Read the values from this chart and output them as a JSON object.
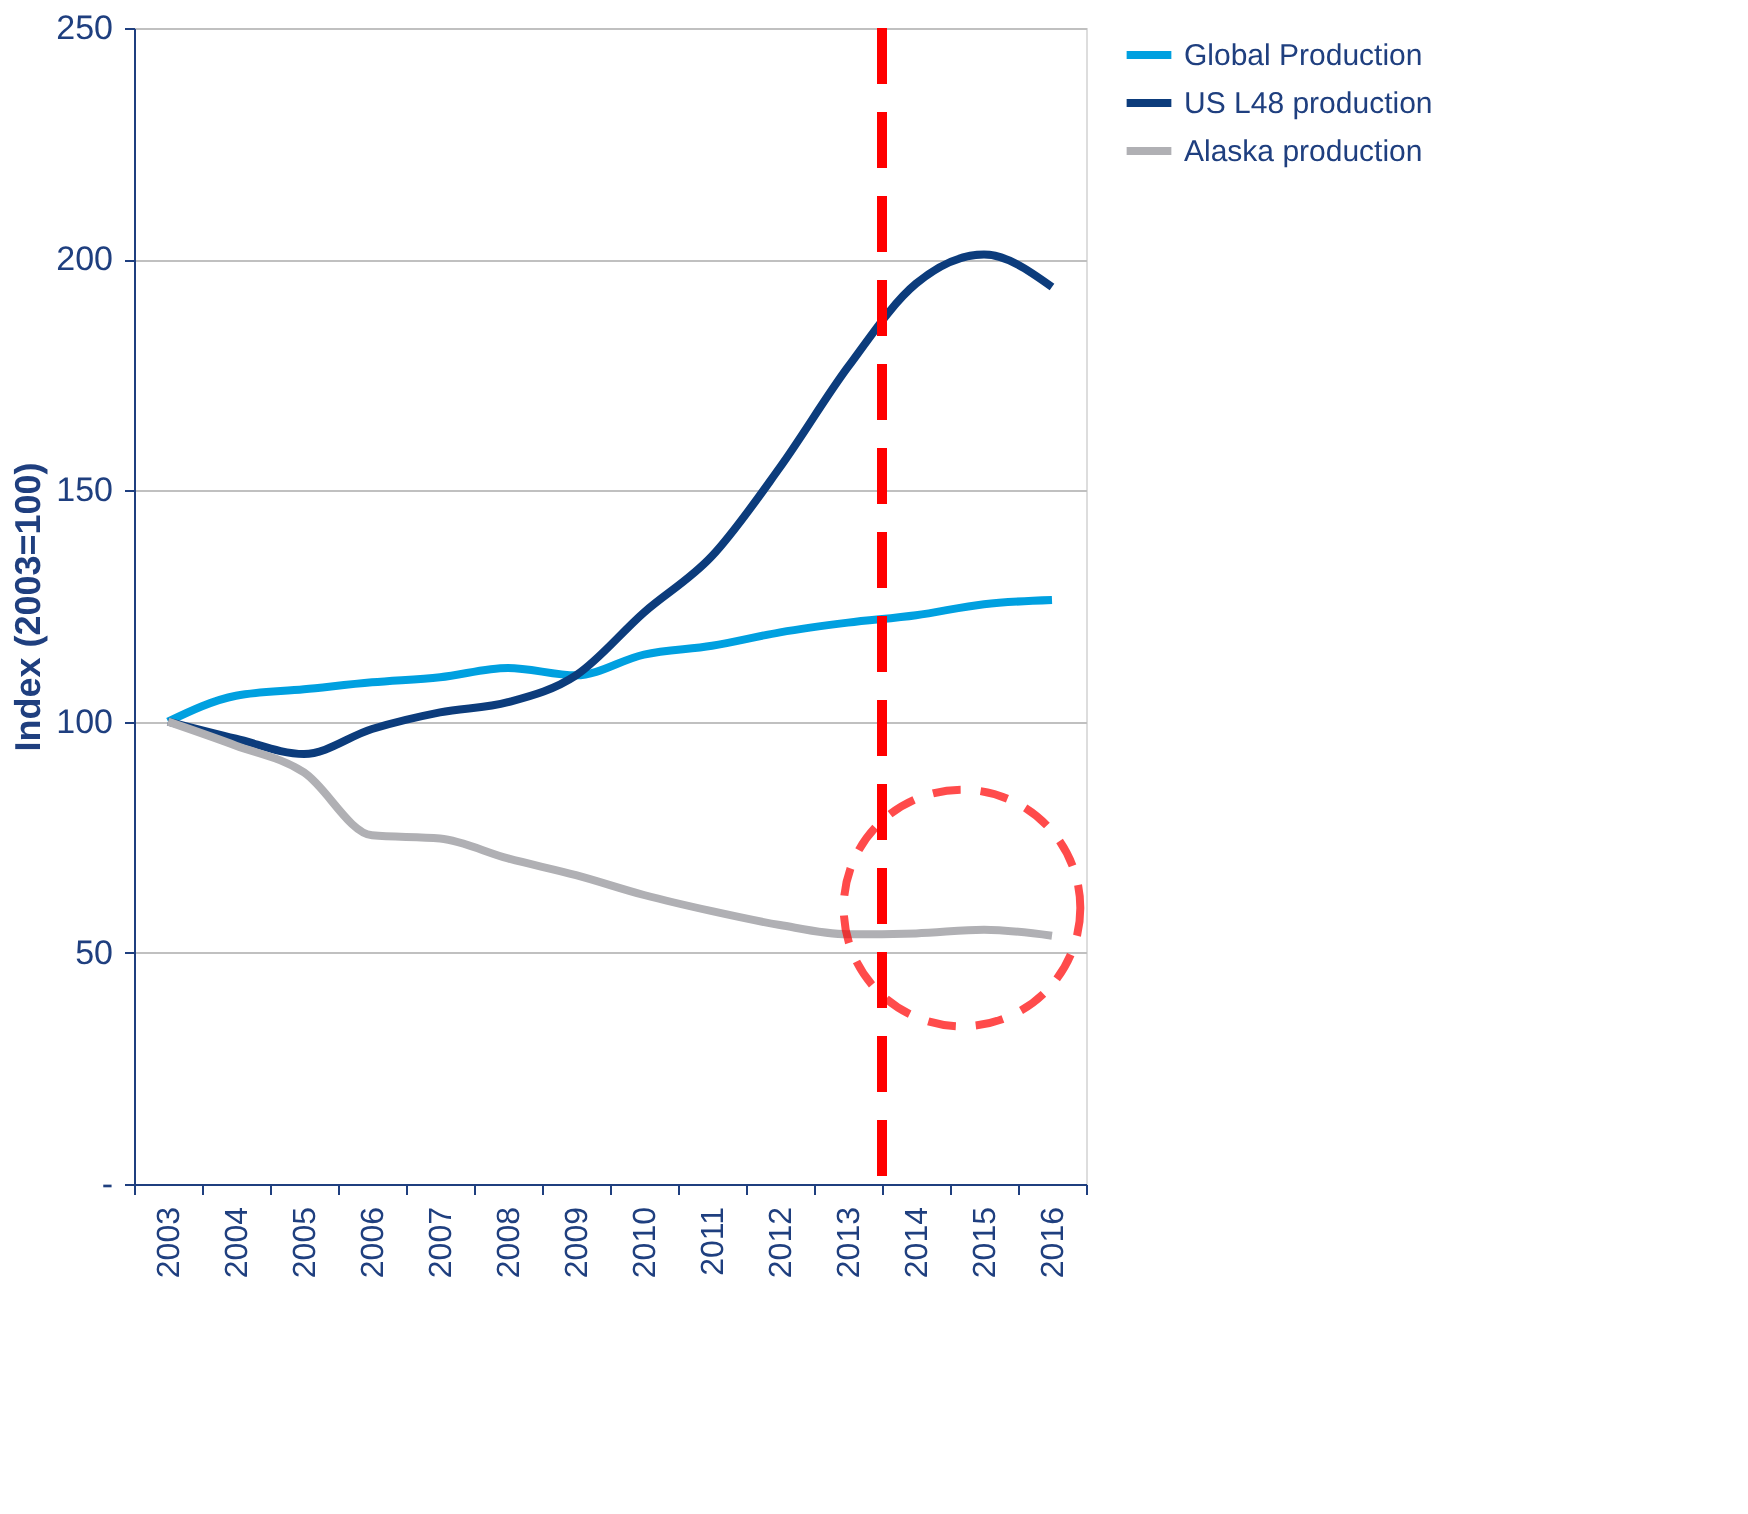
{
  "chart_data": {
    "type": "line",
    "ylabel": "Index (2003=100)",
    "categories": [
      "2003",
      "2004",
      "2005",
      "2006",
      "2007",
      "2008",
      "2009",
      "2010",
      "2011",
      "2012",
      "2013",
      "2014",
      "2015",
      "2016"
    ],
    "series": [
      {
        "name": "Global Production",
        "color": "#00a0e0",
        "values": [
          100,
          105.6,
          107,
          108.5,
          109.6,
          111.6,
          110,
          114.5,
          116.4,
          119.3,
          121.4,
          123,
          125.4,
          126.3
        ]
      },
      {
        "name": "US L48 production",
        "color": "#0c3c7c",
        "values": [
          100,
          96.3,
          93,
          98.4,
          102,
          104.2,
          110,
          123.6,
          135.8,
          155,
          176.7,
          194.7,
          201,
          194
        ]
      },
      {
        "name": "Alaska production",
        "color": "#b0b0b4",
        "values": [
          100,
          94.8,
          89,
          75.4,
          74.7,
          70.4,
          66.8,
          62.5,
          59,
          56,
          54,
          54.2,
          55,
          53.7
        ]
      }
    ],
    "ylim": [
      0,
      250
    ],
    "yticks": [
      {
        "value": 0,
        "label": "-"
      },
      50,
      100,
      150,
      200,
      250
    ],
    "grid": "y",
    "legend": "right",
    "line_style": "solid",
    "marker": "none",
    "ref_lines": [
      {
        "axis": "x",
        "value": "2013",
        "color": "#ff0000",
        "line_style": "dashed"
      }
    ]
  }
}
